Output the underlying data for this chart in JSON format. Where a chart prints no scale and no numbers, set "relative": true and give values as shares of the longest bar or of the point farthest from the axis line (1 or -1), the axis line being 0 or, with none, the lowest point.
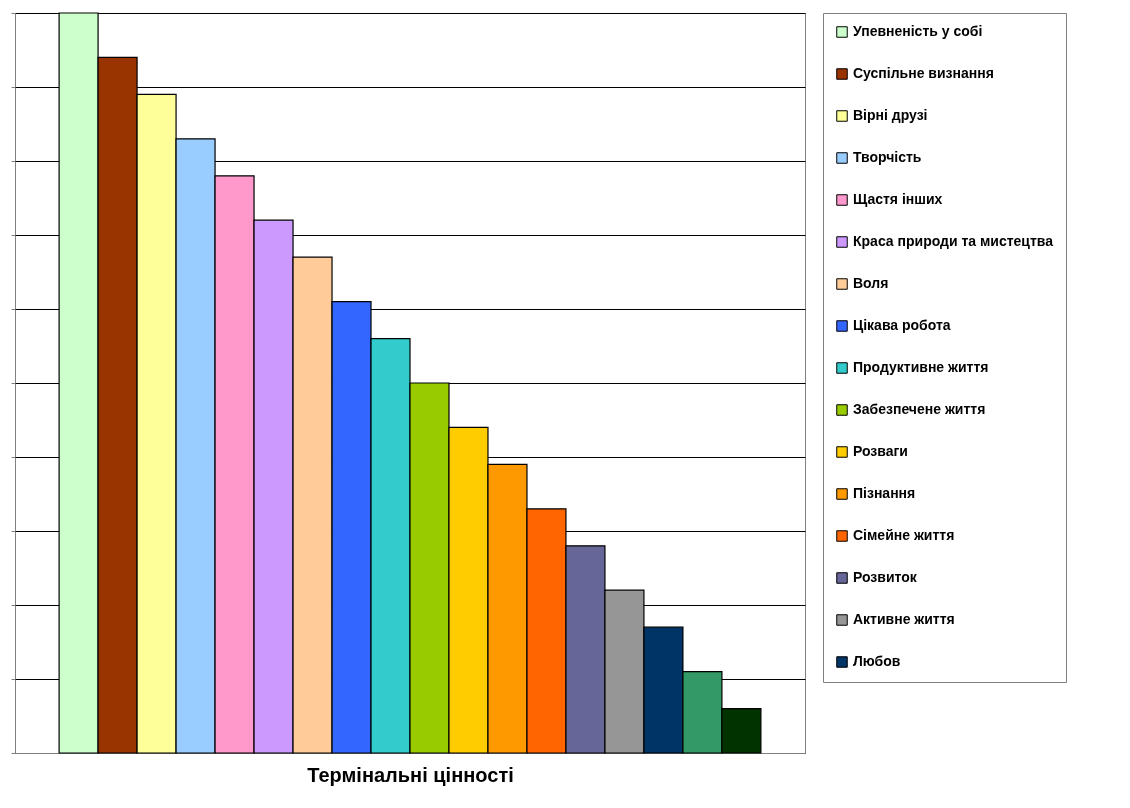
{
  "chart_data": {
    "type": "bar",
    "xlabel": "Термінальні цінності",
    "categories": [
      null
    ],
    "relative": true,
    "grid": "y",
    "legend": "right",
    "series": [
      {
        "name": "Упевненість у собі",
        "color": "#ccffcc",
        "values": [
          1
        ]
      },
      {
        "name": "Суспільне визнання",
        "color": "#993300",
        "values": [
          0.94
        ]
      },
      {
        "name": "Вірні друзі",
        "color": "#ffff99",
        "values": [
          0.89
        ]
      },
      {
        "name": "Творчість",
        "color": "#99ccff",
        "values": [
          0.83
        ]
      },
      {
        "name": "Щастя інших",
        "color": "#ff99cc",
        "values": [
          0.78
        ]
      },
      {
        "name": "Краса природи та мистецтва",
        "color": "#cc99ff",
        "values": [
          0.72
        ]
      },
      {
        "name": "Воля",
        "color": "#ffcc99",
        "values": [
          0.67
        ]
      },
      {
        "name": "Цікава робота",
        "color": "#3366ff",
        "values": [
          0.61
        ]
      },
      {
        "name": "Продуктивне життя",
        "color": "#33cccc",
        "values": [
          0.56
        ]
      },
      {
        "name": "Забезпечене життя",
        "color": "#99cc00",
        "values": [
          0.5
        ]
      },
      {
        "name": "Розваги",
        "color": "#ffcc00",
        "values": [
          0.44
        ]
      },
      {
        "name": "Пізнання",
        "color": "#ff9900",
        "values": [
          0.39
        ]
      },
      {
        "name": "Сімейне життя",
        "color": "#ff6600",
        "values": [
          0.33
        ]
      },
      {
        "name": "Розвиток",
        "color": "#666699",
        "values": [
          0.28
        ]
      },
      {
        "name": "Активне життя",
        "color": "#969696",
        "values": [
          0.22
        ]
      },
      {
        "name": "Любов",
        "color": "#003366",
        "values": [
          0.17
        ]
      },
      {
        "color": "#339966",
        "values": [
          0.11
        ]
      },
      {
        "color": "#003300",
        "values": [
          0.06
        ]
      }
    ]
  }
}
